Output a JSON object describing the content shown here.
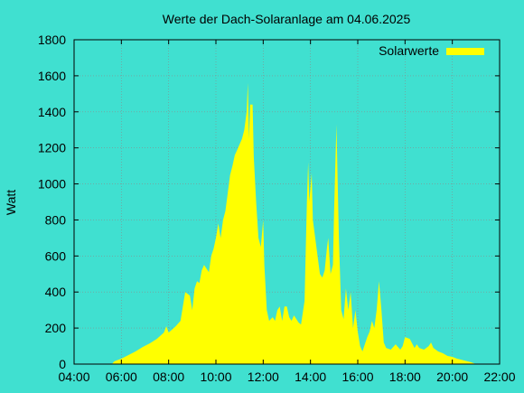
{
  "colors": {
    "background": "#40E0D0",
    "area": "#FFFF00",
    "grid": "#8B8B8B",
    "axis": "#000000"
  },
  "chart_data": {
    "type": "area",
    "title": "Werte der Dach-Solaranlage am 04.06.2025",
    "ylabel": "Watt",
    "xlabel": "",
    "xlim": [
      4,
      22
    ],
    "ylim": [
      0,
      1800
    ],
    "grid": true,
    "legend": "top-right",
    "x_ticks": [
      "04:00",
      "06:00",
      "08:00",
      "10:00",
      "12:00",
      "14:00",
      "16:00",
      "18:00",
      "20:00",
      "22:00"
    ],
    "y_ticks": [
      "0",
      "200",
      "400",
      "600",
      "800",
      "1000",
      "1200",
      "1400",
      "1600",
      "1800"
    ],
    "series": [
      {
        "name": "Solarwerte",
        "points": [
          [
            5.6,
            0
          ],
          [
            5.7,
            15
          ],
          [
            6.0,
            30
          ],
          [
            6.3,
            50
          ],
          [
            6.6,
            70
          ],
          [
            6.9,
            95
          ],
          [
            7.2,
            115
          ],
          [
            7.5,
            140
          ],
          [
            7.8,
            175
          ],
          [
            7.9,
            210
          ],
          [
            8.0,
            175
          ],
          [
            8.3,
            210
          ],
          [
            8.5,
            240
          ],
          [
            8.6,
            320
          ],
          [
            8.7,
            400
          ],
          [
            8.9,
            380
          ],
          [
            9.0,
            300
          ],
          [
            9.1,
            420
          ],
          [
            9.2,
            460
          ],
          [
            9.3,
            450
          ],
          [
            9.4,
            520
          ],
          [
            9.5,
            550
          ],
          [
            9.6,
            530
          ],
          [
            9.7,
            510
          ],
          [
            9.8,
            600
          ],
          [
            9.9,
            640
          ],
          [
            10.0,
            700
          ],
          [
            10.1,
            780
          ],
          [
            10.2,
            700
          ],
          [
            10.3,
            800
          ],
          [
            10.4,
            850
          ],
          [
            10.5,
            950
          ],
          [
            10.6,
            1050
          ],
          [
            10.7,
            1100
          ],
          [
            10.8,
            1160
          ],
          [
            10.9,
            1190
          ],
          [
            11.0,
            1220
          ],
          [
            11.1,
            1250
          ],
          [
            11.2,
            1300
          ],
          [
            11.3,
            1400
          ],
          [
            11.35,
            1560
          ],
          [
            11.4,
            1250
          ],
          [
            11.45,
            1440
          ],
          [
            11.55,
            1440
          ],
          [
            11.6,
            1150
          ],
          [
            11.7,
            900
          ],
          [
            11.8,
            700
          ],
          [
            11.9,
            650
          ],
          [
            12.0,
            800
          ],
          [
            12.05,
            550
          ],
          [
            12.15,
            300
          ],
          [
            12.25,
            240
          ],
          [
            12.4,
            260
          ],
          [
            12.5,
            240
          ],
          [
            12.6,
            300
          ],
          [
            12.7,
            320
          ],
          [
            12.8,
            240
          ],
          [
            12.9,
            320
          ],
          [
            13.0,
            320
          ],
          [
            13.1,
            260
          ],
          [
            13.2,
            240
          ],
          [
            13.3,
            270
          ],
          [
            13.4,
            250
          ],
          [
            13.5,
            230
          ],
          [
            13.6,
            220
          ],
          [
            13.75,
            350
          ],
          [
            13.85,
            900
          ],
          [
            13.9,
            1120
          ],
          [
            13.95,
            900
          ],
          [
            14.05,
            1060
          ],
          [
            14.1,
            800
          ],
          [
            14.2,
            700
          ],
          [
            14.3,
            600
          ],
          [
            14.4,
            500
          ],
          [
            14.5,
            480
          ],
          [
            14.6,
            520
          ],
          [
            14.7,
            650
          ],
          [
            14.75,
            700
          ],
          [
            14.85,
            500
          ],
          [
            14.95,
            550
          ],
          [
            15.0,
            850
          ],
          [
            15.1,
            1330
          ],
          [
            15.2,
            700
          ],
          [
            15.3,
            300
          ],
          [
            15.4,
            250
          ],
          [
            15.5,
            420
          ],
          [
            15.6,
            300
          ],
          [
            15.7,
            400
          ],
          [
            15.8,
            200
          ],
          [
            15.9,
            300
          ],
          [
            16.0,
            180
          ],
          [
            16.1,
            100
          ],
          [
            16.2,
            70
          ],
          [
            16.4,
            150
          ],
          [
            16.5,
            180
          ],
          [
            16.6,
            240
          ],
          [
            16.7,
            200
          ],
          [
            16.8,
            300
          ],
          [
            16.9,
            460
          ],
          [
            17.0,
            300
          ],
          [
            17.1,
            120
          ],
          [
            17.2,
            90
          ],
          [
            17.4,
            80
          ],
          [
            17.6,
            110
          ],
          [
            17.8,
            80
          ],
          [
            17.9,
            100
          ],
          [
            18.0,
            150
          ],
          [
            18.2,
            140
          ],
          [
            18.4,
            90
          ],
          [
            18.5,
            110
          ],
          [
            18.6,
            90
          ],
          [
            18.8,
            80
          ],
          [
            19.0,
            100
          ],
          [
            19.1,
            120
          ],
          [
            19.2,
            90
          ],
          [
            19.4,
            70
          ],
          [
            19.6,
            60
          ],
          [
            19.8,
            45
          ],
          [
            20.0,
            40
          ],
          [
            20.2,
            30
          ],
          [
            20.5,
            20
          ],
          [
            20.8,
            10
          ],
          [
            21.0,
            0
          ]
        ]
      }
    ]
  }
}
